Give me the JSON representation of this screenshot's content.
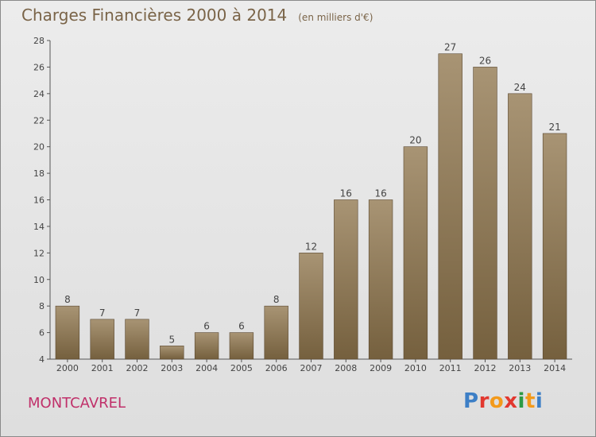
{
  "title": "Charges Financières 2000 à 2014",
  "unit_note": "(en milliers d'€)",
  "commune": "MONTCAVREL",
  "logo": {
    "letters": [
      "P",
      "r",
      "o",
      "x",
      "i",
      "t",
      "i"
    ],
    "colors": [
      "#3d7fc6",
      "#e2382f",
      "#f39a1b",
      "#e2382f",
      "#2d9a45",
      "#f39a1b",
      "#3d7fc6"
    ]
  },
  "colors": {
    "bar_top": "#a89474",
    "bar_bottom": "#75603e",
    "text": "#7a6448",
    "commune": "#c0306a"
  },
  "chart_data": {
    "type": "bar",
    "title": "Charges Financières 2000 à 2014",
    "subtitle": "(en milliers d'€)",
    "xlabel": "",
    "ylabel": "",
    "categories": [
      "2000",
      "2001",
      "2002",
      "2003",
      "2004",
      "2005",
      "2006",
      "2007",
      "2008",
      "2009",
      "2010",
      "2011",
      "2012",
      "2013",
      "2014"
    ],
    "values": [
      8,
      7,
      7,
      5,
      6,
      6,
      8,
      12,
      16,
      16,
      20,
      27,
      26,
      24,
      21
    ],
    "ylim": [
      4,
      28
    ],
    "yticks": [
      4,
      6,
      8,
      10,
      12,
      14,
      16,
      18,
      20,
      22,
      24,
      26,
      28
    ],
    "grid": false,
    "data_labels": true
  }
}
